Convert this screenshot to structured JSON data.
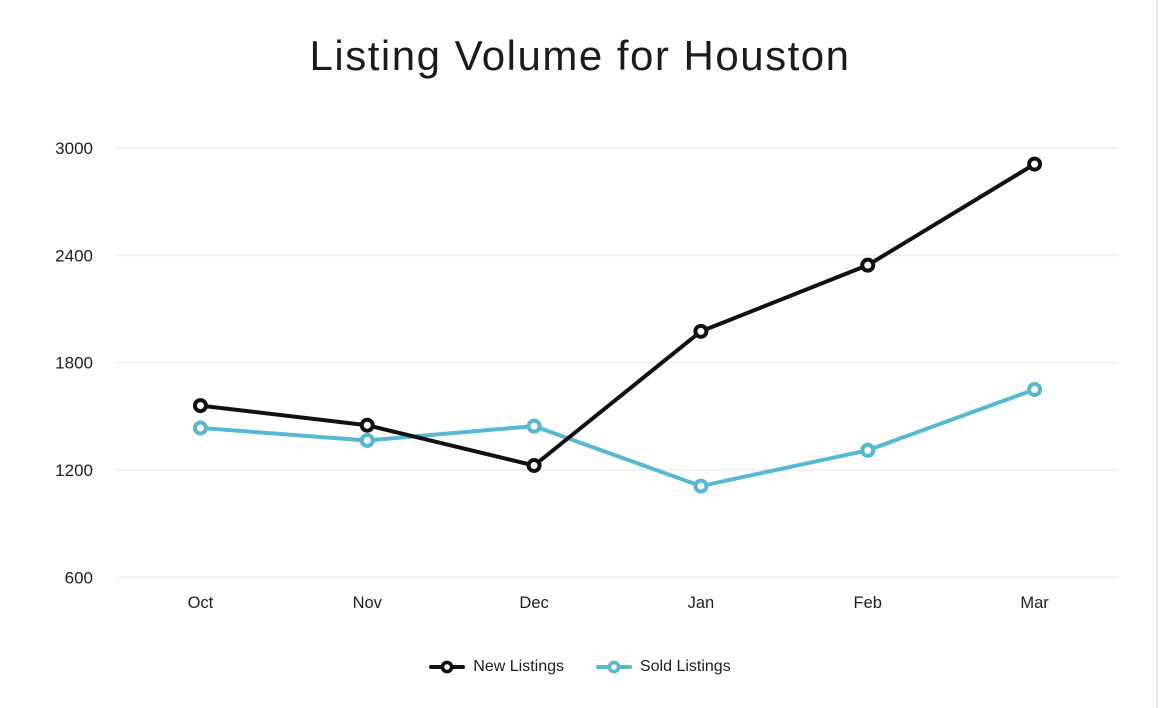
{
  "title": "Listing Volume for Houston",
  "colors": {
    "background": "#ffffff",
    "new_listings": "#111111",
    "sold_listings": "#56b8d2",
    "gridline": "#f1f1f1",
    "axis_text": "#1f1f1f",
    "title_text": "#1b1b1b",
    "marker_fill": "#ffffff",
    "right_edge_line": "#ebebeb"
  },
  "chart_data": {
    "type": "line",
    "title": "Listing Volume for Houston",
    "categories": [
      "Oct",
      "Nov",
      "Dec",
      "Jan",
      "Feb",
      "Mar"
    ],
    "series": [
      {
        "name": "New Listings",
        "color": "#111111",
        "values": [
          1560,
          1450,
          1225,
          1975,
          2345,
          2910
        ]
      },
      {
        "name": "Sold Listings",
        "color": "#56b8d2",
        "values": [
          1435,
          1365,
          1445,
          1110,
          1310,
          1650
        ]
      }
    ],
    "xlabel": "",
    "ylabel": "",
    "ylim": [
      600,
      3000
    ],
    "yticks": [
      600,
      1200,
      1800,
      2400,
      3000
    ],
    "grid": "horizontal-only",
    "legend_position": "bottom",
    "marker_style": "open-circle",
    "line_width": 4
  },
  "legend": {
    "items": [
      {
        "label": "New Listings"
      },
      {
        "label": "Sold Listings"
      }
    ]
  }
}
